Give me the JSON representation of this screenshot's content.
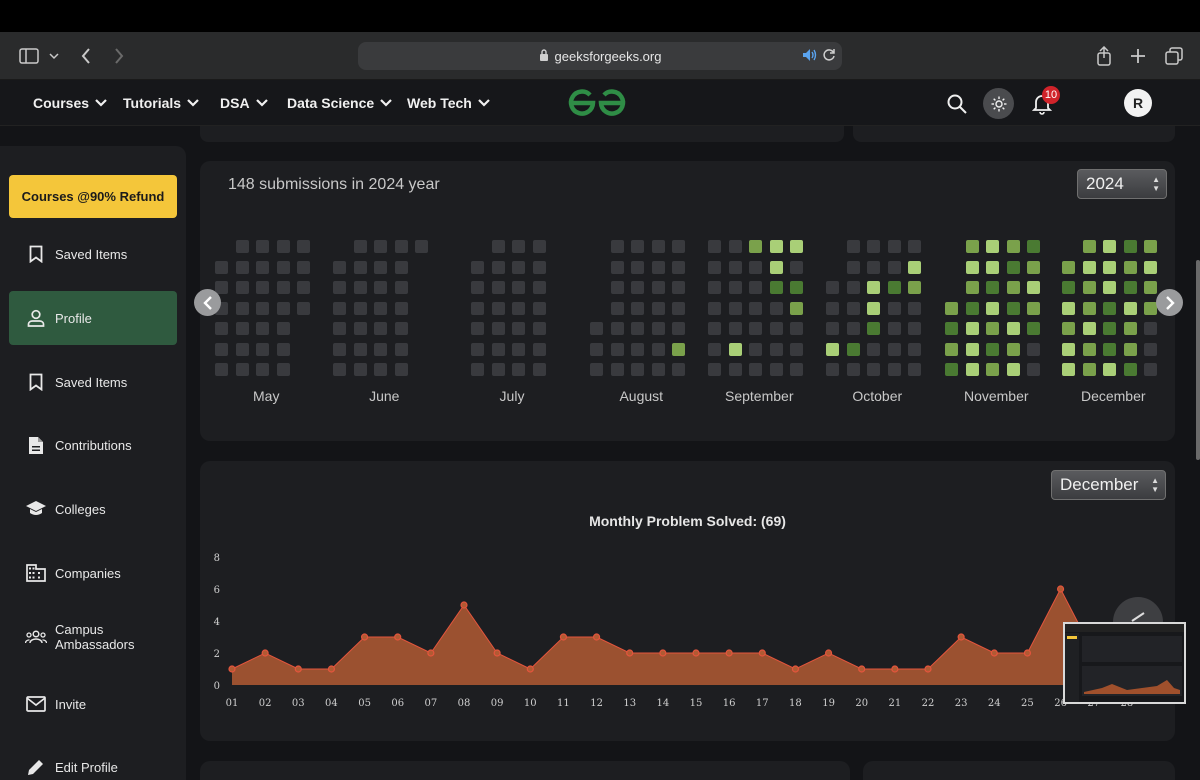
{
  "browser": {
    "url": "geeksforgeeks.org"
  },
  "nav": {
    "items": [
      "Courses",
      "Tutorials",
      "DSA",
      "Data Science",
      "Web Tech"
    ],
    "notification_count": "10",
    "avatar_initial": "R"
  },
  "sidebar": {
    "promo": "Courses @90% Refund",
    "items": [
      {
        "label": "Saved Items",
        "icon": "bookmark-icon"
      },
      {
        "label": "Profile",
        "icon": "person-icon",
        "active": true
      },
      {
        "label": "Saved Items",
        "icon": "bookmark-icon"
      },
      {
        "label": "Contributions",
        "icon": "document-icon"
      },
      {
        "label": "Colleges",
        "icon": "graduation-cap-icon"
      },
      {
        "label": "Companies",
        "icon": "building-icon"
      },
      {
        "label": "Campus\nAmbassadors",
        "icon": "group-icon"
      },
      {
        "label": "Invite",
        "icon": "mail-icon"
      },
      {
        "label": "Edit Profile",
        "icon": "pencil-icon"
      }
    ]
  },
  "submissions": {
    "title": "148 submissions in 2024 year",
    "year": "2024",
    "months": [
      "May",
      "June",
      "July",
      "August",
      "September",
      "October",
      "November",
      "December"
    ],
    "colors": {
      "empty": "#393a3e",
      "l1": "#4a7a32",
      "l2": "#7aa14b",
      "l3": "#a9cf77"
    }
  },
  "chart": {
    "selected_month": "December",
    "title": "Monthly Problem Solved: (69)"
  },
  "chart_data": {
    "type": "area",
    "title": "Monthly Problem Solved: (69)",
    "xlabel": "",
    "ylabel": "",
    "x": [
      "01",
      "02",
      "03",
      "04",
      "05",
      "06",
      "07",
      "08",
      "09",
      "10",
      "11",
      "12",
      "13",
      "14",
      "15",
      "16",
      "17",
      "18",
      "19",
      "20",
      "21",
      "22",
      "23",
      "24",
      "25",
      "26",
      "27",
      "28"
    ],
    "y": [
      1,
      2,
      1,
      1,
      3,
      3,
      2,
      5,
      2,
      1,
      3,
      3,
      2,
      2,
      2,
      2,
      2,
      1,
      2,
      1,
      1,
      1,
      3,
      2,
      2,
      6,
      2,
      2
    ],
    "yticks": [
      0,
      2,
      4,
      6,
      8
    ],
    "ylim": [
      0,
      8
    ],
    "grid": false,
    "color": "#e07040"
  }
}
